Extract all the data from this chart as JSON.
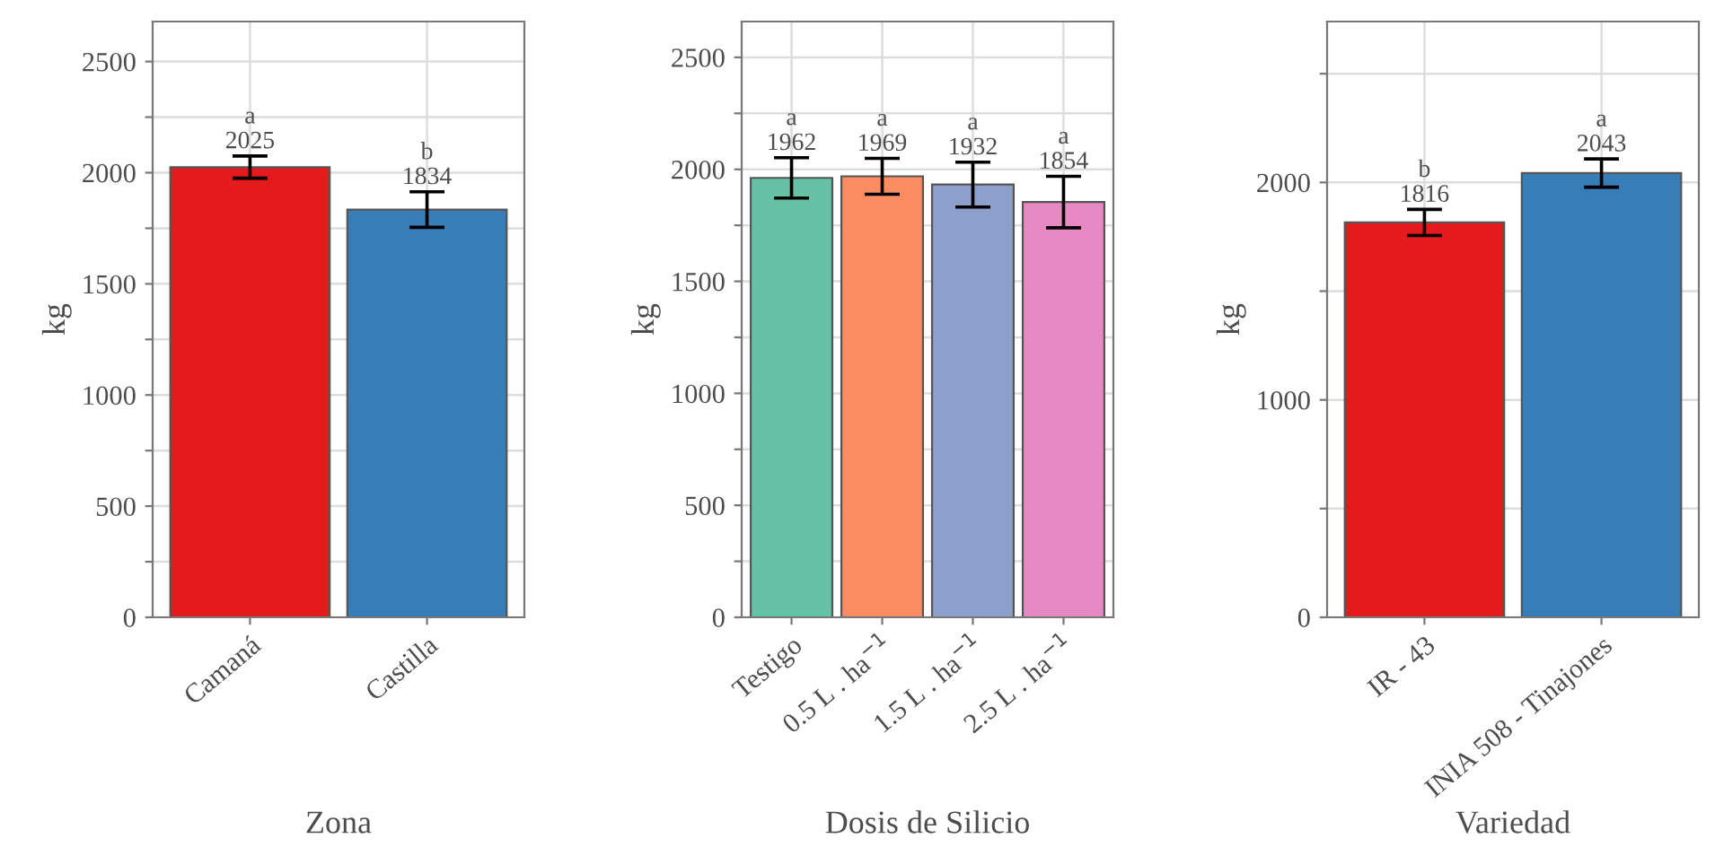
{
  "chart_data": [
    {
      "type": "bar",
      "xlabel": "Zona",
      "ylabel": "kg",
      "categories": [
        "Camaná",
        "Castilla"
      ],
      "values": [
        2025,
        1834
      ],
      "colors": [
        "#e41a1c",
        "#377eb8"
      ],
      "errors": [
        50,
        80
      ],
      "data_labels": true,
      "ylim": [
        0,
        2680
      ],
      "yticks": [
        0,
        {
          "value": 250,
          "label": null
        },
        500,
        {
          "value": 750,
          "label": null
        },
        1000,
        {
          "value": 1250,
          "label": null
        },
        1500,
        {
          "value": 1750,
          "label": null
        },
        2000,
        {
          "value": 2250,
          "label": null
        },
        2500
      ],
      "grid": true,
      "annotations": [
        {
          "text": "a",
          "x": "Camaná",
          "y": 2075
        },
        {
          "text": "b",
          "x": "Castilla",
          "y": 1914
        }
      ]
    },
    {
      "type": "bar",
      "xlabel": "Dosis de Silicio",
      "ylabel": "kg",
      "categories": [
        "Testigo",
        "0.5 L . ha$^{−1}$",
        "1.5 L . ha$^{−1}$",
        "2.5 L . ha$^{−1}$"
      ],
      "values": [
        1962,
        1969,
        1932,
        1854
      ],
      "colors": [
        "#66c2a5",
        "#fc8d62",
        "#8da0cb",
        "#e78ac3"
      ],
      "errors": [
        90,
        80,
        100,
        115
      ],
      "data_labels": true,
      "ylim": [
        0,
        2660
      ],
      "yticks": [
        0,
        {
          "value": 250,
          "label": null
        },
        500,
        {
          "value": 750,
          "label": null
        },
        1000,
        {
          "value": 1250,
          "label": null
        },
        1500,
        {
          "value": 1750,
          "label": null
        },
        2000,
        {
          "value": 2250,
          "label": null
        },
        2500
      ],
      "grid": true,
      "annotations": [
        {
          "text": "a",
          "x": "Testigo",
          "y": 2052
        },
        {
          "text": "a",
          "x": "0.5 L . ha$^{−1}$",
          "y": 2049
        },
        {
          "text": "a",
          "x": "1.5 L . ha$^{−1}$",
          "y": 2032
        },
        {
          "text": "a",
          "x": "2.5 L . ha$^{−1}$",
          "y": 1969
        }
      ]
    },
    {
      "type": "bar",
      "xlabel": "Variedad",
      "ylabel": "kg",
      "categories": [
        "IR - 43",
        "INIA 508 - Tinajones"
      ],
      "values": [
        1816,
        2043
      ],
      "colors": [
        "#e41a1c",
        "#377eb8"
      ],
      "errors": [
        60,
        65
      ],
      "data_labels": true,
      "ylim": [
        0,
        2740
      ],
      "yticks": [
        0,
        {
          "value": 500,
          "label": null
        },
        1000,
        {
          "value": 1500,
          "label": null
        },
        2000,
        {
          "value": 2500,
          "label": null
        }
      ],
      "grid": true,
      "annotations": [
        {
          "text": "b",
          "x": "IR - 43",
          "y": 1876
        },
        {
          "text": "a",
          "x": "INIA 508 - Tinajones",
          "y": 2108
        }
      ]
    }
  ]
}
